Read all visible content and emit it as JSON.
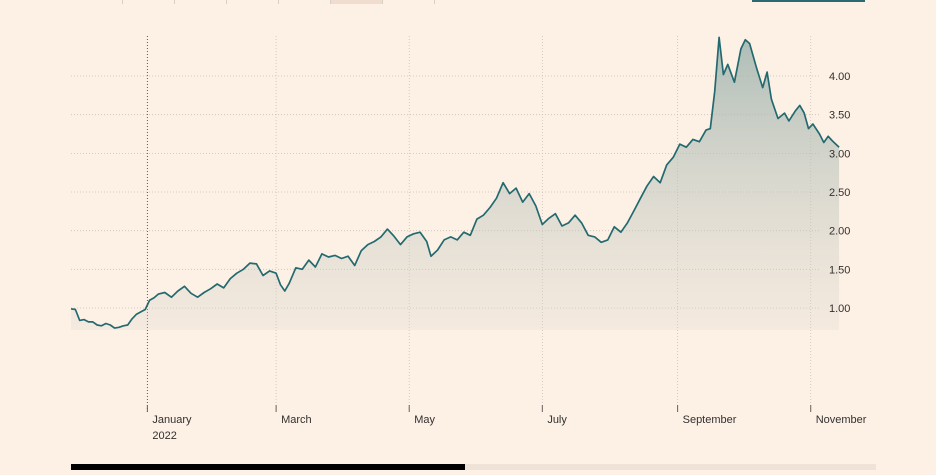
{
  "colors": {
    "background": "#fdf1e6",
    "line": "#236a70",
    "grid": "#c9c0b8",
    "tick_text": "#33302e",
    "accent": "#2c6a72"
  },
  "chart_data": {
    "type": "area",
    "title": "",
    "xlabel": "",
    "ylabel": "",
    "ylim": [
      0.35,
      4.55
    ],
    "y_ticks": [
      "1.00",
      "1.50",
      "2.00",
      "2.50",
      "3.00",
      "3.50",
      "4.00"
    ],
    "y_tick_values": [
      1.0,
      1.5,
      2.0,
      2.5,
      3.0,
      3.5,
      4.0
    ],
    "x_range": [
      "2021-11-27",
      "2022-11-19"
    ],
    "x_ticks": [
      {
        "date": "2022-01-01",
        "label": "January",
        "sublabel": "2022"
      },
      {
        "date": "2022-03-01",
        "label": "March",
        "sublabel": ""
      },
      {
        "date": "2022-05-01",
        "label": "May",
        "sublabel": ""
      },
      {
        "date": "2022-07-01",
        "label": "July",
        "sublabel": ""
      },
      {
        "date": "2022-09-01",
        "label": "September",
        "sublabel": ""
      },
      {
        "date": "2022-11-01",
        "label": "November",
        "sublabel": ""
      }
    ],
    "grid": true,
    "series": [
      {
        "values": [
          [
            "2021-11-27",
            0.99
          ],
          [
            "2021-11-29",
            0.98
          ],
          [
            "2021-12-01",
            0.84
          ],
          [
            "2021-12-03",
            0.85
          ],
          [
            "2021-12-05",
            0.82
          ],
          [
            "2021-12-07",
            0.82
          ],
          [
            "2021-12-09",
            0.78
          ],
          [
            "2021-12-11",
            0.77
          ],
          [
            "2021-12-13",
            0.8
          ],
          [
            "2021-12-15",
            0.78
          ],
          [
            "2021-12-17",
            0.74
          ],
          [
            "2021-12-19",
            0.75
          ],
          [
            "2021-12-21",
            0.77
          ],
          [
            "2021-12-23",
            0.78
          ],
          [
            "2021-12-25",
            0.86
          ],
          [
            "2021-12-27",
            0.92
          ],
          [
            "2021-12-29",
            0.95
          ],
          [
            "2021-12-31",
            0.98
          ],
          [
            "2022-01-02",
            1.1
          ],
          [
            "2022-01-04",
            1.13
          ],
          [
            "2022-01-06",
            1.18
          ],
          [
            "2022-01-09",
            1.2
          ],
          [
            "2022-01-12",
            1.14
          ],
          [
            "2022-01-15",
            1.22
          ],
          [
            "2022-01-18",
            1.28
          ],
          [
            "2022-01-21",
            1.19
          ],
          [
            "2022-01-24",
            1.14
          ],
          [
            "2022-01-27",
            1.2
          ],
          [
            "2022-01-30",
            1.25
          ],
          [
            "2022-02-02",
            1.31
          ],
          [
            "2022-02-05",
            1.26
          ],
          [
            "2022-02-08",
            1.38
          ],
          [
            "2022-02-11",
            1.45
          ],
          [
            "2022-02-14",
            1.5
          ],
          [
            "2022-02-17",
            1.58
          ],
          [
            "2022-02-20",
            1.57
          ],
          [
            "2022-02-23",
            1.42
          ],
          [
            "2022-02-26",
            1.48
          ],
          [
            "2022-03-01",
            1.45
          ],
          [
            "2022-03-03",
            1.3
          ],
          [
            "2022-03-05",
            1.22
          ],
          [
            "2022-03-07",
            1.32
          ],
          [
            "2022-03-10",
            1.52
          ],
          [
            "2022-03-13",
            1.5
          ],
          [
            "2022-03-16",
            1.62
          ],
          [
            "2022-03-19",
            1.53
          ],
          [
            "2022-03-22",
            1.7
          ],
          [
            "2022-03-25",
            1.66
          ],
          [
            "2022-03-28",
            1.68
          ],
          [
            "2022-03-31",
            1.64
          ],
          [
            "2022-04-03",
            1.67
          ],
          [
            "2022-04-06",
            1.55
          ],
          [
            "2022-04-09",
            1.74
          ],
          [
            "2022-04-12",
            1.82
          ],
          [
            "2022-04-15",
            1.86
          ],
          [
            "2022-04-18",
            1.92
          ],
          [
            "2022-04-21",
            2.02
          ],
          [
            "2022-04-24",
            1.93
          ],
          [
            "2022-04-27",
            1.82
          ],
          [
            "2022-04-30",
            1.92
          ],
          [
            "2022-05-03",
            1.96
          ],
          [
            "2022-05-06",
            1.98
          ],
          [
            "2022-05-09",
            1.86
          ],
          [
            "2022-05-11",
            1.67
          ],
          [
            "2022-05-14",
            1.75
          ],
          [
            "2022-05-17",
            1.88
          ],
          [
            "2022-05-20",
            1.92
          ],
          [
            "2022-05-23",
            1.88
          ],
          [
            "2022-05-26",
            1.98
          ],
          [
            "2022-05-29",
            1.94
          ],
          [
            "2022-06-01",
            2.15
          ],
          [
            "2022-06-04",
            2.2
          ],
          [
            "2022-06-07",
            2.3
          ],
          [
            "2022-06-10",
            2.42
          ],
          [
            "2022-06-13",
            2.62
          ],
          [
            "2022-06-16",
            2.48
          ],
          [
            "2022-06-19",
            2.55
          ],
          [
            "2022-06-22",
            2.37
          ],
          [
            "2022-06-25",
            2.48
          ],
          [
            "2022-06-28",
            2.32
          ],
          [
            "2022-07-01",
            2.08
          ],
          [
            "2022-07-04",
            2.16
          ],
          [
            "2022-07-07",
            2.22
          ],
          [
            "2022-07-10",
            2.06
          ],
          [
            "2022-07-13",
            2.1
          ],
          [
            "2022-07-16",
            2.2
          ],
          [
            "2022-07-19",
            2.1
          ],
          [
            "2022-07-22",
            1.94
          ],
          [
            "2022-07-25",
            1.92
          ],
          [
            "2022-07-28",
            1.85
          ],
          [
            "2022-07-31",
            1.88
          ],
          [
            "2022-08-03",
            2.05
          ],
          [
            "2022-08-06",
            1.98
          ],
          [
            "2022-08-09",
            2.1
          ],
          [
            "2022-08-12",
            2.26
          ],
          [
            "2022-08-15",
            2.42
          ],
          [
            "2022-08-18",
            2.58
          ],
          [
            "2022-08-21",
            2.7
          ],
          [
            "2022-08-24",
            2.62
          ],
          [
            "2022-08-27",
            2.85
          ],
          [
            "2022-08-30",
            2.95
          ],
          [
            "2022-09-02",
            3.12
          ],
          [
            "2022-09-05",
            3.08
          ],
          [
            "2022-09-08",
            3.18
          ],
          [
            "2022-09-11",
            3.15
          ],
          [
            "2022-09-14",
            3.3
          ],
          [
            "2022-09-16",
            3.32
          ],
          [
            "2022-09-18",
            3.8
          ],
          [
            "2022-09-20",
            4.5
          ],
          [
            "2022-09-22",
            4.02
          ],
          [
            "2022-09-24",
            4.15
          ],
          [
            "2022-09-27",
            3.92
          ],
          [
            "2022-09-30",
            4.35
          ],
          [
            "2022-10-02",
            4.47
          ],
          [
            "2022-10-04",
            4.42
          ],
          [
            "2022-10-07",
            4.12
          ],
          [
            "2022-10-10",
            3.85
          ],
          [
            "2022-10-12",
            4.05
          ],
          [
            "2022-10-14",
            3.7
          ],
          [
            "2022-10-17",
            3.45
          ],
          [
            "2022-10-20",
            3.52
          ],
          [
            "2022-10-22",
            3.42
          ],
          [
            "2022-10-25",
            3.55
          ],
          [
            "2022-10-27",
            3.62
          ],
          [
            "2022-10-29",
            3.52
          ],
          [
            "2022-10-31",
            3.32
          ],
          [
            "2022-11-02",
            3.38
          ],
          [
            "2022-11-05",
            3.25
          ],
          [
            "2022-11-07",
            3.14
          ],
          [
            "2022-11-09",
            3.22
          ],
          [
            "2022-11-11",
            3.16
          ],
          [
            "2022-11-14",
            3.08
          ]
        ]
      }
    ]
  }
}
